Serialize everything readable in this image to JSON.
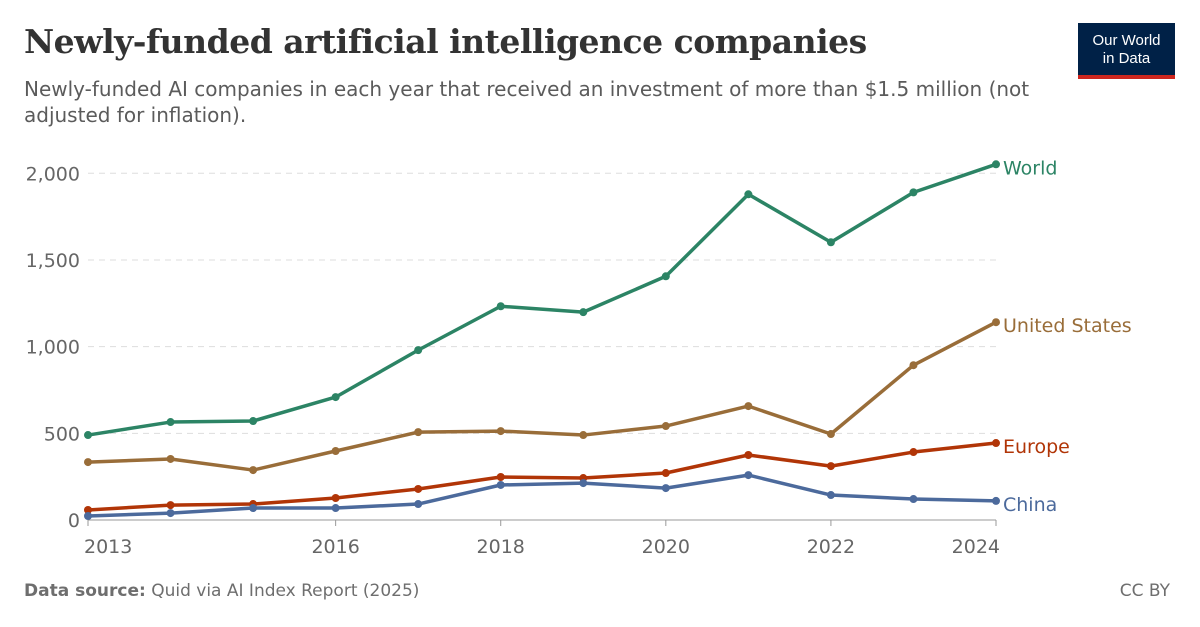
{
  "header": {
    "title": "Newly-funded artificial intelligence companies",
    "subtitle": "Newly-funded AI companies in each year that received an investment of more than $1.5 million (not adjusted for inflation).",
    "logo_text": [
      "Our World",
      "in Data"
    ]
  },
  "footer": {
    "source_label": "Data source:",
    "source_text": "Quid via AI Index Report (2025)",
    "license": "CC BY"
  },
  "chart_data": {
    "type": "line",
    "title": "Newly-funded artificial intelligence companies",
    "xlabel": "",
    "ylabel": "",
    "xlim": [
      2013,
      2024
    ],
    "ylim": [
      0,
      2000
    ],
    "x_ticks": [
      2013,
      2016,
      2018,
      2020,
      2022,
      2024
    ],
    "y_ticks": [
      0,
      500,
      1000,
      1500,
      2000
    ],
    "y_tick_labels": [
      "0",
      "500",
      "1,000",
      "1,500",
      "2,000"
    ],
    "grid": "horizontal dashed",
    "legend": "line-end labels on the right",
    "x": [
      2013,
      2014,
      2015,
      2016,
      2017,
      2018,
      2019,
      2020,
      2021,
      2022,
      2023,
      2024
    ],
    "series": [
      {
        "name": "World",
        "color": "#2c8465",
        "values": [
          490,
          565,
          571,
          709,
          980,
          1233,
          1199,
          1406,
          1879,
          1602,
          1890,
          2052
        ]
      },
      {
        "name": "United States",
        "color": "#996d39",
        "values": [
          334,
          352,
          288,
          398,
          507,
          513,
          490,
          542,
          657,
          496,
          893,
          1141
        ]
      },
      {
        "name": "Europe",
        "color": "#b13507",
        "values": [
          58,
          86,
          92,
          127,
          179,
          248,
          242,
          271,
          375,
          311,
          392,
          444
        ]
      },
      {
        "name": "China",
        "color": "#4c6a9c",
        "values": [
          23,
          40,
          69,
          69,
          92,
          202,
          213,
          184,
          259,
          144,
          121,
          110
        ]
      }
    ]
  }
}
